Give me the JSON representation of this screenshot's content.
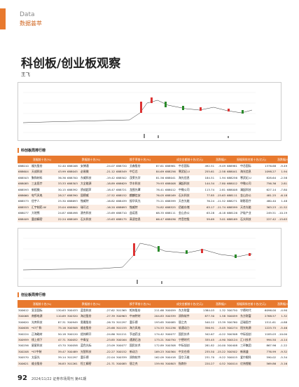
{
  "header": {
    "en": "Data",
    "cn": "数据荟萃"
  },
  "title": "科创板/创业板观察",
  "author": "王飞",
  "sections": [
    {
      "label": "科创板周排行榜",
      "headers": [
        "涨幅前十名(%)",
        "跌幅前十名(%)",
        "换手率前十名(%)",
        "成交金额前十名(亿元)",
        "振幅周排名前十名(亿元)"
      ],
      "change_header": "涨跌幅(%)",
      "rows": [
        [
          "688010",
          "福光股份",
          "52.40",
          "688168",
          "安博通",
          "-24.07",
          "688720",
          "艾森股份",
          "87.61",
          "688981",
          "中芯国际",
          "492.51",
          "-9.49",
          "688981",
          "中芯国际",
          "1376.68",
          "-9.49"
        ],
        [
          "688604",
          "天成科技",
          "43.99",
          "688045",
          "必易微",
          "-21.12",
          "688549",
          "中巨芯",
          "84.69",
          "688256",
          "寒武纪-U",
          "255.61",
          "-2.58",
          "688041",
          "海光信息",
          "1098.27",
          "1.94"
        ],
        [
          "688503",
          "聚和材料",
          "36.36",
          "688700",
          "东威科技",
          "-19.42",
          "688502",
          "茂莱光学",
          "81.56",
          "688041",
          "海光信息",
          "184.51",
          "1.94",
          "688256",
          "寒武纪-U",
          "828.64",
          "-2.58"
        ],
        [
          "688085",
          "三友医疗",
          "33.33",
          "688303",
          "大全能源",
          "-18.89",
          "688629",
          "华丰科技",
          "79.93",
          "688008",
          "澜起科技",
          "144.34",
          "-7.80",
          "688012",
          "中微公司",
          "756.36",
          "2.81"
        ],
        [
          "688593",
          "新相微",
          "30.15",
          "688392",
          "骄成超声",
          "-18.47",
          "688721",
          "龙图光罩",
          "78.41",
          "688012",
          "中微公司",
          "113.74",
          "2.81",
          "688008",
          "澜起科技",
          "627.14",
          "-7.80"
        ],
        [
          "688660",
          "电气风电",
          "28.27",
          "688390",
          "固德威",
          "-17.52",
          "688152",
          "麒麟信安",
          "76.05",
          "688169",
          "石头科技",
          "77.85",
          "-15.63",
          "688111",
          "金山办公",
          "481.25",
          "-6.18"
        ],
        [
          "688573",
          "信宇人",
          "25.30",
          "688693",
          "锴威特",
          "-16.82",
          "688439",
          "振华风光",
          "75.21",
          "688599",
          "天合光能",
          "76.24",
          "-11.52",
          "688271",
          "联影医疗",
          "480.40",
          "1.48"
        ],
        [
          "688553",
          "汇宇制药-W",
          "25.04",
          "688800",
          "瑞可达",
          "-16.20",
          "688693",
          "锴威特",
          "74.82",
          "688525",
          "佰维存储",
          "63.17",
          "-11.74",
          "688599",
          "天合光能",
          "363.23",
          "-11.52"
        ],
        [
          "688077",
          "大地熊",
          "24.87",
          "688498",
          "源杰科技",
          "-15.69",
          "688710",
          "益诺思",
          "68.35",
          "688111",
          "金山办公",
          "63.28",
          "-6.18",
          "688126",
          "沪硅产业",
          "249.51",
          "-10.19"
        ],
        [
          "688409",
          "富创精密",
          "22.24",
          "688169",
          "石头科技",
          "-15.63",
          "688175",
          "高凌信息",
          "66.47",
          "688036",
          "传音控股",
          "59.69",
          "3.01",
          "688169",
          "石头科技",
          "227.42",
          "-15.63"
        ]
      ]
    },
    {
      "label": "创业板周排行榜",
      "headers": [
        "涨幅前十名(%)",
        "跌幅前十名(%)",
        "换手率前十名(%)",
        "成交金额前十名(亿元)",
        "振幅周排名前十名(亿元)"
      ],
      "change_header": "涨跌幅(%)",
      "rows": [
        [
          "300612",
          "宣亚国际",
          "130.63",
          "300433",
          "蓝思科技",
          "-27.62",
          "301365",
          "矩阵股份",
          "211.68",
          "300059",
          "东方财富",
          "1384.03",
          "1.32",
          "300750",
          "宁德时代",
          "6096.00",
          "-4.90"
        ],
        [
          "300068",
          "南都电源",
          "110.69",
          "300320",
          "海达股份",
          "-27.39",
          "300963",
          "中洲特材",
          "204.83",
          "300339",
          "润和软件",
          "877.30",
          "1.58",
          "300059",
          "东方财富",
          "2768.57",
          "1.32"
        ],
        [
          "300620",
          "光库科技",
          "87.31",
          "300949",
          "奥雅股份",
          "-26.70",
          "301297",
          "富乐德",
          "193.65",
          "300085",
          "银之杰",
          "540.22",
          "13.39",
          "300760",
          "迈瑞医疗",
          "1511.61",
          "-4.88"
        ],
        [
          "300638",
          "*ST广和",
          "75.16",
          "300508",
          "维宏股份",
          "-25.68",
          "301155",
          "海力风电",
          "174.53",
          "301236",
          "软通动力",
          "356.91",
          "-5.05",
          "300274",
          "阳光电源",
          "1225.75",
          "-5.46"
        ],
        [
          "300224",
          "正海磁材",
          "50.18",
          "300120",
          "经纬辉开",
          "-24.86",
          "301211",
          "亨迪药业",
          "174.42",
          "300077",
          "国民技术",
          "342.67",
          "-0.22",
          "300308",
          "中际旭创",
          "1185.03",
          "-10.00"
        ],
        [
          "300959",
          "线上线下",
          "47.71",
          "300052",
          "中青宝",
          "-23.85",
          "300164",
          "通源石油",
          "173.21",
          "300750",
          "宁德时代",
          "335.45",
          "-4.90",
          "300124",
          "汇川技术",
          "994.50",
          "-4.14"
        ],
        [
          "300256",
          "星星科技",
          "43.70",
          "300058",
          "蓝色光标",
          "-23.09",
          "300077",
          "国民技术",
          "172.89",
          "300308",
          "中际旭创",
          "281.82",
          "-10.00",
          "300408",
          "三环集团",
          "867.96",
          "-1.22"
        ],
        [
          "300208",
          "*ST中装",
          "39.47",
          "300489",
          "光智科技",
          "-22.27",
          "300152",
          "新动力",
          "169.23",
          "300364",
          "中文在线",
          "235.50",
          "-15.22",
          "300502",
          "新易盛",
          "776.99",
          "-9.32"
        ],
        [
          "300570",
          "太辰光",
          "39.14",
          "301297",
          "富乐德",
          "-22.04",
          "300339",
          "润和软件",
          "162.09",
          "300418",
          "昆仑万维",
          "231.70",
          "-9.22",
          "300015",
          "爱尔眼科",
          "590.02",
          "-5.34"
        ],
        [
          "300621",
          "维业股份",
          "36.83",
          "301261",
          "恒工精密",
          "-21.71",
          "300085",
          "银之杰",
          "159.90",
          "300803",
          "指南针",
          "220.27",
          "0.52",
          "300014",
          "亿纬锂能",
          "569.86",
          "-5.16"
        ]
      ]
    }
  ],
  "footer": {
    "page": "92",
    "date": "2024/11/22",
    "issue": "证券市场周刊 第41期"
  }
}
